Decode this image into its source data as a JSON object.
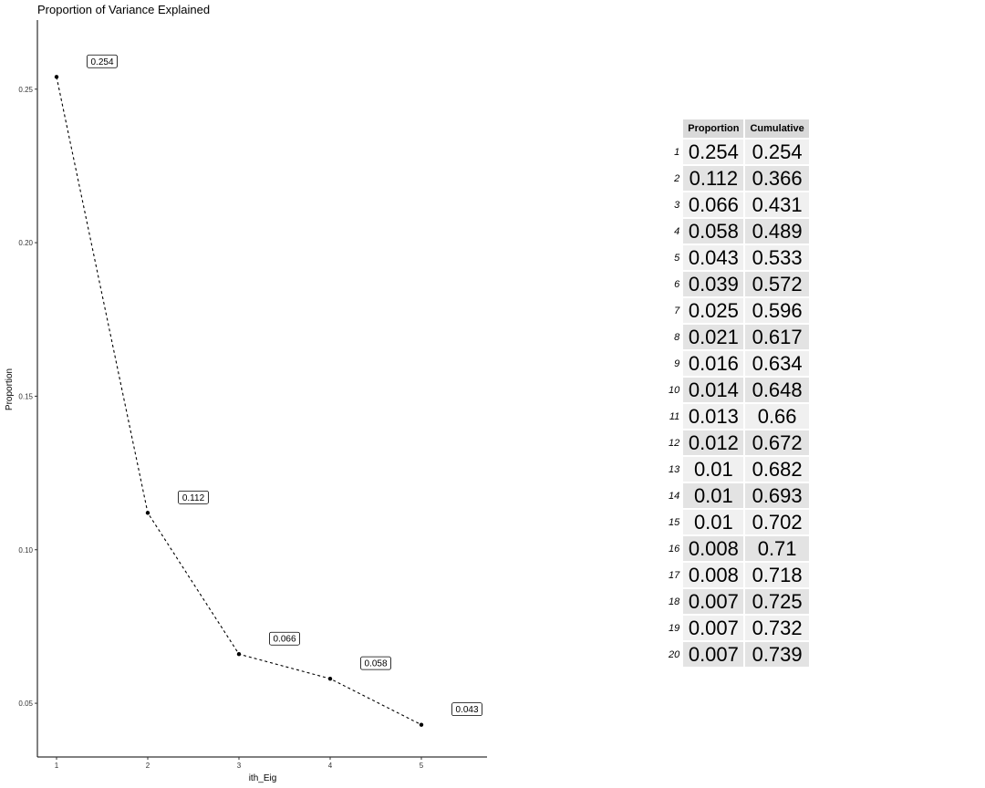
{
  "chart_data": [
    {
      "type": "line",
      "title": "Proportion of Variance Explained",
      "xlabel": "ith_Eig",
      "ylabel": "Proportion",
      "x": [
        1,
        2,
        3,
        4,
        5
      ],
      "values": [
        0.254,
        0.112,
        0.066,
        0.058,
        0.043
      ],
      "data_labels": [
        "0.254",
        "0.112",
        "0.066",
        "0.058",
        "0.043"
      ],
      "x_ticks": [
        "1",
        "2",
        "3",
        "4",
        "5"
      ],
      "y_ticks": [
        0.05,
        0.1,
        0.15,
        0.2,
        0.25
      ],
      "y_tick_labels": [
        "0.05",
        "0.10",
        "0.15",
        "0.20",
        "0.25"
      ],
      "xlim": [
        0.79,
        5.72
      ],
      "ylim": [
        0.0325,
        0.2725
      ],
      "line_style": "dashed",
      "grid": false
    },
    {
      "type": "table",
      "columns": [
        "Proportion",
        "Cumulative"
      ],
      "rows": [
        {
          "name": "1",
          "proportion": "0.254",
          "cumulative": "0.254"
        },
        {
          "name": "2",
          "proportion": "0.112",
          "cumulative": "0.366"
        },
        {
          "name": "3",
          "proportion": "0.066",
          "cumulative": "0.431"
        },
        {
          "name": "4",
          "proportion": "0.058",
          "cumulative": "0.489"
        },
        {
          "name": "5",
          "proportion": "0.043",
          "cumulative": "0.533"
        },
        {
          "name": "6",
          "proportion": "0.039",
          "cumulative": "0.572"
        },
        {
          "name": "7",
          "proportion": "0.025",
          "cumulative": "0.596"
        },
        {
          "name": "8",
          "proportion": "0.021",
          "cumulative": "0.617"
        },
        {
          "name": "9",
          "proportion": "0.016",
          "cumulative": "0.634"
        },
        {
          "name": "10",
          "proportion": "0.014",
          "cumulative": "0.648"
        },
        {
          "name": "11",
          "proportion": "0.013",
          "cumulative": "0.66"
        },
        {
          "name": "12",
          "proportion": "0.012",
          "cumulative": "0.672"
        },
        {
          "name": "13",
          "proportion": "0.01",
          "cumulative": "0.682"
        },
        {
          "name": "14",
          "proportion": "0.01",
          "cumulative": "0.693"
        },
        {
          "name": "15",
          "proportion": "0.01",
          "cumulative": "0.702"
        },
        {
          "name": "16",
          "proportion": "0.008",
          "cumulative": "0.71"
        },
        {
          "name": "17",
          "proportion": "0.008",
          "cumulative": "0.718"
        },
        {
          "name": "18",
          "proportion": "0.007",
          "cumulative": "0.725"
        },
        {
          "name": "19",
          "proportion": "0.007",
          "cumulative": "0.732"
        },
        {
          "name": "20",
          "proportion": "0.007",
          "cumulative": "0.739"
        }
      ]
    }
  ]
}
